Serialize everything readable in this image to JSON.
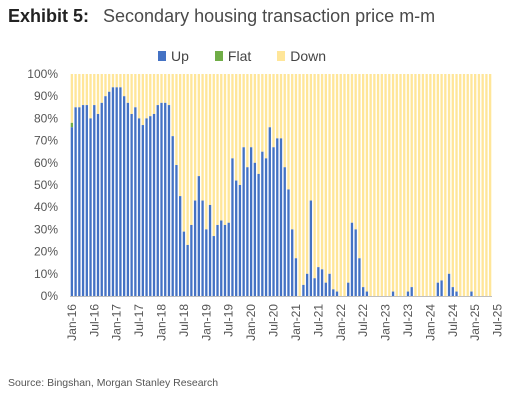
{
  "header": {
    "exhibit_label": "Exhibit 5:",
    "title": "Secondary housing transaction price m-m"
  },
  "footer": {
    "source": "Source: Bingshan, Morgan Stanley Research"
  },
  "chart_data": {
    "type": "bar",
    "stacked": true,
    "percent_stacked": true,
    "legend_position": "top",
    "grid": false,
    "ylim": [
      0,
      100
    ],
    "yticks": [
      "0%",
      "10%",
      "20%",
      "30%",
      "40%",
      "50%",
      "60%",
      "70%",
      "80%",
      "90%",
      "100%"
    ],
    "xtick_labels": [
      "Jan-16",
      "Jul-16",
      "Jan-17",
      "Jul-17",
      "Jan-18",
      "Jul-18",
      "Jan-19",
      "Jul-19",
      "Jan-20",
      "Jul-20",
      "Jan-21",
      "Jul-21",
      "Jan-22",
      "Jul-22",
      "Jan-23",
      "Jul-23",
      "Jan-24",
      "Jul-24",
      "Jan-25",
      "Jul-25"
    ],
    "start_month": "Jan-16",
    "series": [
      {
        "name": "Up",
        "color": "#4472C4",
        "values": [
          76,
          85,
          85,
          86,
          86,
          80,
          86,
          82,
          87,
          90,
          92,
          94,
          94,
          94,
          90,
          87,
          82,
          85,
          80,
          77,
          80,
          81,
          82,
          86,
          87,
          87,
          86,
          72,
          59,
          45,
          29,
          23,
          32,
          43,
          54,
          43,
          30,
          41,
          27,
          32,
          34,
          32,
          33,
          62,
          52,
          50,
          67,
          58,
          67,
          60,
          55,
          65,
          62,
          76,
          67,
          71,
          71,
          58,
          48,
          30,
          17,
          0,
          5,
          10,
          43,
          8,
          13,
          12,
          6,
          10,
          3,
          2,
          0,
          0,
          6,
          33,
          30,
          17,
          4,
          2,
          0,
          0,
          0,
          0,
          0,
          0,
          2,
          0,
          0,
          0,
          2,
          4,
          0,
          0,
          0,
          0,
          0,
          0,
          6,
          7,
          0,
          10,
          4,
          2,
          0,
          0,
          0,
          2,
          0,
          0,
          0,
          0,
          0
        ]
      },
      {
        "name": "Flat",
        "color": "#70AD47",
        "values": [
          2,
          0,
          0,
          0,
          0,
          0,
          0,
          0,
          0,
          0,
          0,
          0,
          0,
          0,
          0,
          0,
          0,
          0,
          0,
          0,
          0,
          0,
          0,
          0,
          0,
          0,
          0,
          0,
          0,
          0,
          0,
          0,
          0,
          0,
          0,
          0,
          0,
          0,
          0,
          0,
          0,
          0,
          0,
          0,
          0,
          0,
          0,
          0,
          0,
          0,
          0,
          0,
          0,
          0,
          0,
          0,
          0,
          0,
          0,
          0,
          0,
          0,
          0,
          0,
          0,
          0,
          0,
          0,
          0,
          0,
          0,
          0,
          0,
          0,
          0,
          0,
          0,
          0,
          0,
          0,
          0,
          0,
          0,
          0,
          0,
          0,
          0,
          0,
          0,
          0,
          0,
          0,
          0,
          0,
          0,
          0,
          0,
          0,
          0,
          0,
          0,
          0,
          0,
          0,
          0,
          0,
          0,
          0,
          0,
          0,
          0,
          0,
          0
        ]
      },
      {
        "name": "Down",
        "color": "#FFE699",
        "remainder": true
      }
    ]
  }
}
